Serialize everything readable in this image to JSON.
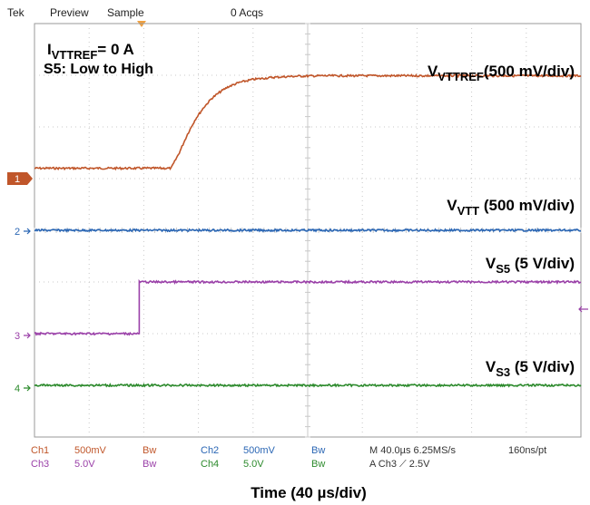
{
  "header": {
    "brand": "Tek",
    "mode": "Preview",
    "acq_mode": "Sample",
    "acq_count": "0 Acqs"
  },
  "annotations": {
    "condition_line1_main": "I",
    "condition_line1_sub": "VTTREF",
    "condition_line1_rest": "= 0 A",
    "condition_line2": "S5: Low to High"
  },
  "channel_markers": {
    "ch1": "1",
    "ch2": "2",
    "ch3": "3",
    "ch4": "4"
  },
  "footer": {
    "row1": {
      "ch1_label": "Ch1",
      "ch1_scale": "500mV",
      "ch1_bw": "Bw",
      "ch2_label": "Ch2",
      "ch2_scale": "500mV",
      "ch2_bw": "Bw",
      "timebase": "M 40.0µs 6.25MS/s",
      "resolution": "160ns/pt"
    },
    "row2": {
      "ch3_label": "Ch3",
      "ch3_scale": "5.0V",
      "ch3_bw": "Bw",
      "ch4_label": "Ch4",
      "ch4_scale": "5.0V",
      "ch4_bw": "Bw",
      "trigger": "A  Ch3  ⟋  2.5V"
    }
  },
  "colors": {
    "ch1": "#c0562a",
    "ch2": "#2a66b4",
    "ch3": "#9a40a8",
    "ch4": "#2c8a2c",
    "grid": "#c8c8c8",
    "trigger_marker": "#f0a040"
  },
  "chart_data": {
    "type": "line",
    "title": "",
    "xlabel": "Time (40 µs/div)",
    "ylabel": "",
    "x_unit": "µs",
    "xlim": [
      0,
      400
    ],
    "ylim_divisions": [
      0,
      8
    ],
    "grid": true,
    "series": [
      {
        "name": "V_VTTREF (500 mV/div)",
        "label_main": "V",
        "label_sub": "VTTREF",
        "label_rest": "(500 mV/div)",
        "channel": "ch1",
        "baseline_div": 5.2,
        "x": [
          0,
          100,
          106,
          112,
          118,
          124,
          130,
          136,
          142,
          150,
          160,
          175,
          190,
          210,
          400
        ],
        "values_mV": [
          0,
          0,
          150,
          330,
          480,
          590,
          680,
          740,
          790,
          830,
          860,
          880,
          890,
          895,
          895
        ]
      },
      {
        "name": "V_VTT (500 mV/div)",
        "label_main": "V",
        "label_sub": "VTT",
        "label_rest": " (500 mV/div)",
        "channel": "ch2",
        "baseline_div": 4.0,
        "x": [
          0,
          400
        ],
        "values_mV": [
          0,
          0
        ]
      },
      {
        "name": "V_S5 (5 V/div)",
        "label_main": "V",
        "label_sub": "S5",
        "label_rest": " (5 V/div)",
        "channel": "ch3",
        "baseline_div": 2.0,
        "x": [
          0,
          76,
          76.01,
          400
        ],
        "values_V": [
          0,
          0,
          5,
          5
        ]
      },
      {
        "name": "V_S3 (5 V/div)",
        "label_main": "V",
        "label_sub": "S3",
        "label_rest": " (5 V/div)",
        "channel": "ch4",
        "baseline_div": 1.0,
        "x": [
          0,
          400
        ],
        "values_V": [
          0,
          0
        ]
      }
    ]
  }
}
